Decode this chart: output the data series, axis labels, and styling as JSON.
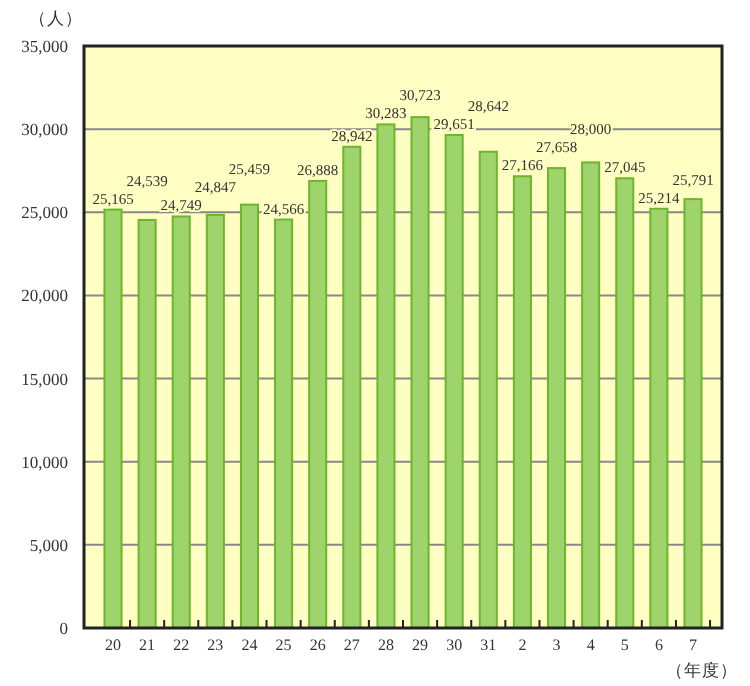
{
  "chart_data": {
    "type": "bar",
    "xlabel": "（年度）",
    "ylabel": "（人）",
    "categories": [
      "20",
      "21",
      "22",
      "23",
      "24",
      "25",
      "26",
      "27",
      "28",
      "29",
      "30",
      "31",
      "2",
      "3",
      "4",
      "5",
      "6",
      "7"
    ],
    "values": [
      25165,
      24539,
      24749,
      24847,
      25459,
      24566,
      26888,
      28942,
      30283,
      30723,
      29651,
      28642,
      27166,
      27658,
      28000,
      27045,
      25214,
      25791
    ],
    "color": "#9fd46c",
    "ylim": [
      0,
      35000
    ],
    "yticks": [
      {
        "value": 0,
        "label": "0"
      },
      {
        "value": 5000,
        "label": "5,000"
      },
      {
        "value": 10000,
        "label": "10,000"
      },
      {
        "value": 15000,
        "label": "15,000"
      },
      {
        "value": 20000,
        "label": "20,000"
      },
      {
        "value": 25000,
        "label": "25,000"
      },
      {
        "value": 30000,
        "label": "30,000"
      },
      {
        "value": 35000,
        "label": "35,000"
      }
    ],
    "value_labels": [
      "25,165",
      "24,539",
      "24,749",
      "24,847",
      "25,459",
      "24,566",
      "26,888",
      "28,942",
      "30,283",
      "30,723",
      "29,651",
      "28,642",
      "27,166",
      "27,658",
      "28,000",
      "27,045",
      "25,214",
      "25,791"
    ],
    "grid": "y"
  }
}
